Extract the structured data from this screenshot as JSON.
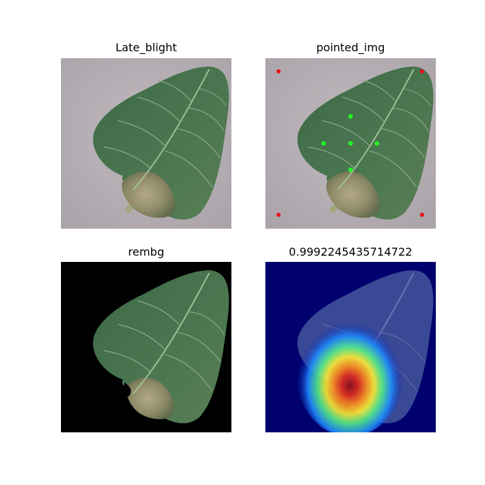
{
  "panels": [
    {
      "title": "Late_blight",
      "type": "original-image"
    },
    {
      "title": "pointed_img",
      "type": "annotated-image",
      "marker_colors": {
        "corner": "#e8101a",
        "point": "#22ff22"
      }
    },
    {
      "title": "rembg",
      "type": "background-removed-image",
      "background": "#000000"
    },
    {
      "title": "0.9992245435714722",
      "type": "gradcam-heatmap-overlay",
      "colormap": "jet"
    }
  ],
  "colors": {
    "background_gray": "#b4adb2",
    "leaf_green": "#3f6b47",
    "vein": "#8fae8a",
    "necrotic": "#9a9272"
  }
}
